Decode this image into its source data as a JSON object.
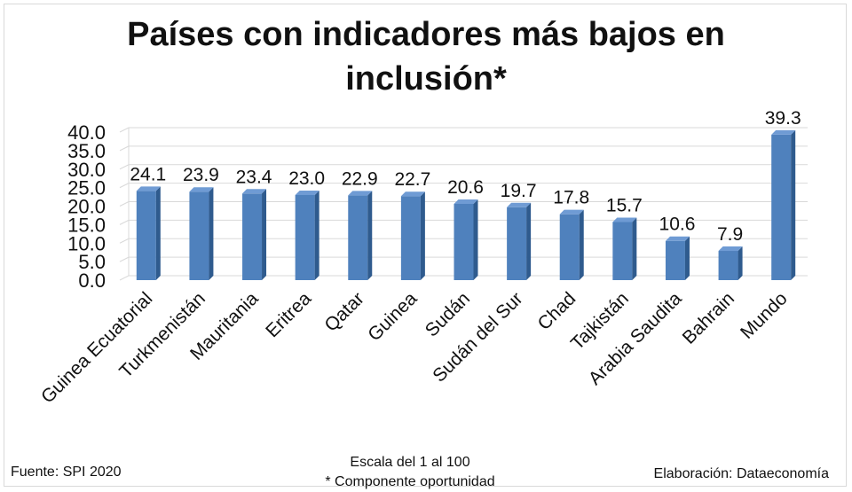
{
  "chart_data": {
    "type": "bar",
    "title": "Países con indicadores más bajos en inclusión*",
    "categories": [
      "Guinea Ecuatorial",
      "Turkmenistán",
      "Mauritania",
      "Eritrea",
      "Qatar",
      "Guinea",
      "Sudán",
      "Sudán del Sur",
      "Chad",
      "Tajkistán",
      "Arabia Saudita",
      "Bahrain",
      "Mundo"
    ],
    "values": [
      24.1,
      23.9,
      23.4,
      23.0,
      22.9,
      22.7,
      20.6,
      19.7,
      17.8,
      15.7,
      10.6,
      7.9,
      39.3
    ],
    "value_labels": [
      "24.1",
      "23.9",
      "23.4",
      "23.0",
      "22.9",
      "22.7",
      "20.6",
      "19.7",
      "17.8",
      "15.7",
      "10.6",
      "7.9",
      "39.3"
    ],
    "yticks": [
      "0.0",
      "5.0",
      "10.0",
      "15.0",
      "20.0",
      "25.0",
      "30.0",
      "35.0",
      "40.0"
    ],
    "ylim": [
      0,
      40
    ],
    "grid": true,
    "legend": "none",
    "bar_color": "#4f81bd",
    "bar_side_color": "#2f5b8e",
    "bar_top_color": "#6f9bd4"
  },
  "title_line1": "Países con indicadores más bajos en",
  "title_line2": "inclusión*",
  "footer": {
    "source": "Fuente: SPI 2020",
    "scale": "Escala del 1 al 100",
    "note": "* Componente oportunidad",
    "credit": "Elaboración: Dataeconomía"
  }
}
